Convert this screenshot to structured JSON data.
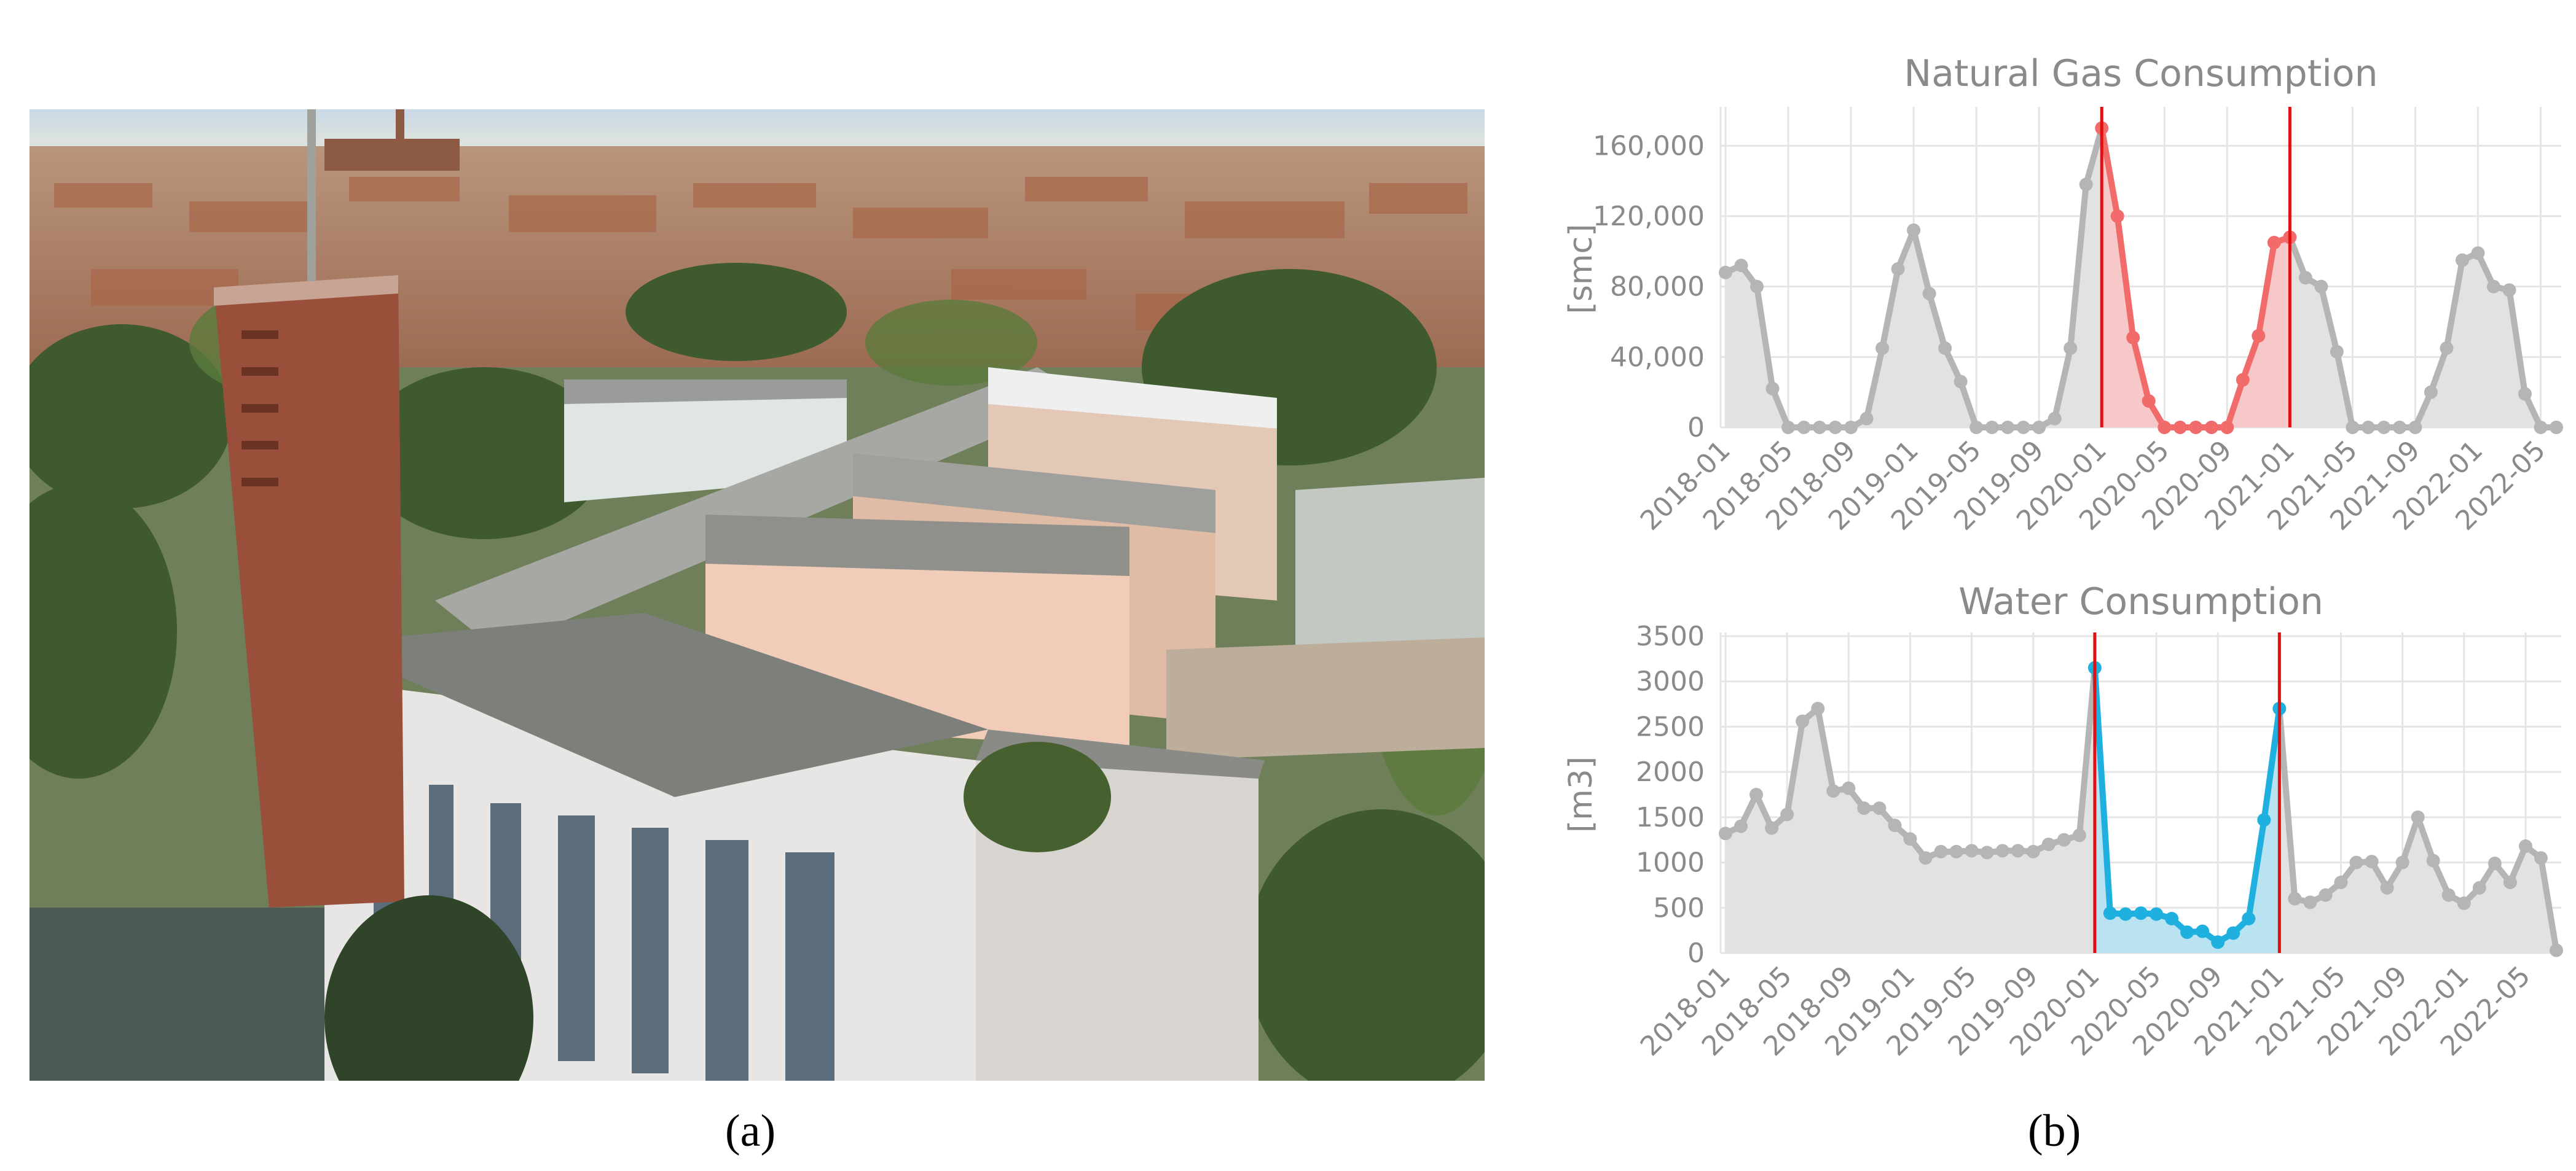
{
  "panels": {
    "a": "(a)",
    "b": "(b)"
  },
  "colors": {
    "grey_line": "#b5b5b5",
    "grey_fill": "#e2e2e2",
    "gas_highlight": "#f26b6b",
    "gas_highlight_fill": "#f9c3c3",
    "water_highlight": "#1fb0e0",
    "water_highlight_fill": "#b3e3f5",
    "marker_line": "#e01010"
  },
  "chart_data": [
    {
      "type": "area",
      "title": "Natural Gas Consumption",
      "xlabel": "",
      "ylabel": "[smc]",
      "ylim": [
        0,
        180000
      ],
      "yticks": [
        0,
        40000,
        80000,
        120000,
        160000
      ],
      "ytick_labels": [
        "0",
        "40,000",
        "80,000",
        "120,000",
        "160,000"
      ],
      "x_start": "2018-01",
      "xtick_labels": [
        "2018-01",
        "2018-05",
        "2018-09",
        "2019-01",
        "2019-05",
        "2019-09",
        "2020-01",
        "2020-05",
        "2020-09",
        "2021-01",
        "2021-05",
        "2021-09",
        "2022-01",
        "2022-05"
      ],
      "grid": true,
      "highlight_range": [
        "2020-01",
        "2021-01"
      ],
      "vertical_markers": [
        "2020-01",
        "2021-01"
      ],
      "values": [
        88000,
        92000,
        80000,
        22000,
        0,
        0,
        0,
        0,
        0,
        5000,
        45000,
        90000,
        112000,
        76000,
        45000,
        26000,
        0,
        0,
        0,
        0,
        0,
        5000,
        45000,
        138000,
        170000,
        120000,
        51000,
        15000,
        0,
        0,
        0,
        0,
        0,
        27000,
        52000,
        105000,
        108000,
        85000,
        80000,
        43000,
        0,
        0,
        0,
        0,
        0,
        20000,
        45000,
        95000,
        99000,
        80000,
        78000,
        19000,
        0,
        0
      ]
    },
    {
      "type": "area",
      "title": "Water Consumption",
      "xlabel": "",
      "ylabel": "[m3]",
      "ylim": [
        0,
        3500
      ],
      "yticks": [
        0,
        500,
        1000,
        1500,
        2000,
        2500,
        3000,
        3500
      ],
      "ytick_labels": [
        "0",
        "500",
        "1000",
        "1500",
        "2000",
        "2500",
        "3000",
        "3500"
      ],
      "x_start": "2018-01",
      "xtick_labels": [
        "2018-01",
        "2018-05",
        "2018-09",
        "2019-01",
        "2019-05",
        "2019-09",
        "2020-01",
        "2020-05",
        "2020-09",
        "2021-01",
        "2021-05",
        "2021-09",
        "2022-01",
        "2022-05"
      ],
      "grid": true,
      "highlight_range": [
        "2020-01",
        "2021-01"
      ],
      "vertical_markers": [
        "2020-01",
        "2021-01"
      ],
      "values": [
        1320,
        1400,
        1750,
        1380,
        1530,
        2560,
        2700,
        1790,
        1820,
        1600,
        1600,
        1410,
        1260,
        1050,
        1120,
        1120,
        1130,
        1110,
        1130,
        1130,
        1120,
        1200,
        1250,
        1300,
        3150,
        440,
        430,
        440,
        430,
        380,
        230,
        240,
        120,
        220,
        380,
        1470,
        2700,
        600,
        560,
        640,
        780,
        1000,
        1010,
        720,
        1000,
        1500,
        1020,
        640,
        550,
        720,
        990,
        780,
        1180,
        1050,
        30
      ]
    }
  ]
}
